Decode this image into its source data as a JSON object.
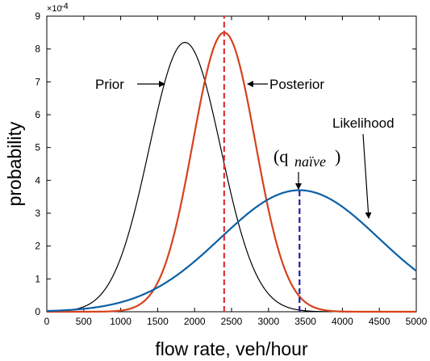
{
  "chart_data": {
    "type": "line",
    "xlabel": "flow rate, veh/hour",
    "ylabel": "probability",
    "y_scale_label": "×10",
    "y_scale_exponent": "-4",
    "xlim": [
      0,
      5000
    ],
    "ylim": [
      0,
      9
    ],
    "x_ticks": [
      "0",
      "500",
      "1000",
      "1500",
      "2000",
      "2500",
      "3000",
      "3500",
      "4000",
      "4500",
      "5000"
    ],
    "y_ticks": [
      "0",
      "1",
      "2",
      "3",
      "4",
      "5",
      "6",
      "7",
      "8",
      "9"
    ],
    "grid": false,
    "series": [
      {
        "name": "Prior",
        "color": "#000000",
        "distribution": "normal",
        "mean": 1870,
        "sd": 485,
        "peak": 8.2
      },
      {
        "name": "Posterior",
        "color": "#d6421c",
        "distribution": "normal",
        "mean": 2400,
        "sd": 423,
        "peak": 8.5
      },
      {
        "name": "Likelihood",
        "color": "#0b5fa5",
        "distribution": "normal",
        "mean": 3420,
        "sd": 1070,
        "peak": 3.7
      }
    ],
    "reference_lines": [
      {
        "x": 2400,
        "color": "#e0303a",
        "style": "dashed"
      },
      {
        "x": 3420,
        "color": "#20209a",
        "style": "dashed",
        "y_top": 3.7
      }
    ],
    "annotations": [
      {
        "text": "Prior",
        "points_to": "Prior"
      },
      {
        "text": "Posterior",
        "points_to": "Posterior"
      },
      {
        "text": "Likelihood",
        "points_to": "Likelihood"
      },
      {
        "text": "(q",
        "subscript": "naïve",
        "closing": ")"
      }
    ]
  }
}
